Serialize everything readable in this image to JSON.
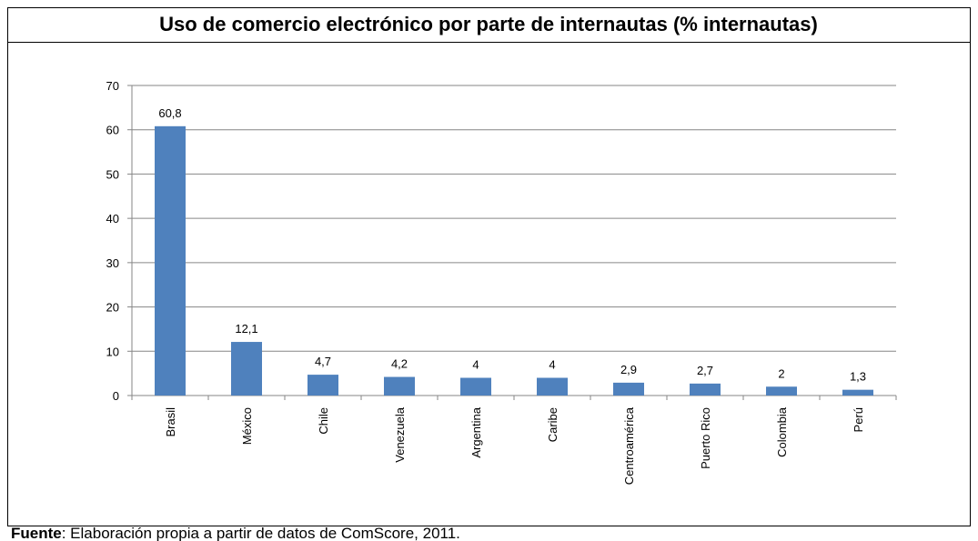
{
  "chart_data": {
    "type": "bar",
    "title": "Uso de comercio electrónico por parte de internautas (% internautas)",
    "categories": [
      "Brasil",
      "México",
      "Chile",
      "Venezuela",
      "Argentina",
      "Caribe",
      "Centroamérica",
      "Puerto Rico",
      "Colombia",
      "Perú"
    ],
    "values": [
      60.8,
      12.1,
      4.7,
      4.2,
      4,
      4,
      2.9,
      2.7,
      2,
      1.3
    ],
    "value_labels": [
      "60,8",
      "12,1",
      "4,7",
      "4,2",
      "4",
      "4",
      "2,9",
      "2,7",
      "2",
      "1,3"
    ],
    "color": "#4f81bd",
    "ylim": [
      0,
      70
    ],
    "yticks": [
      0,
      10,
      20,
      30,
      40,
      50,
      60,
      70
    ],
    "grid": true
  },
  "source": {
    "label": "Fuente",
    "text": ": Elaboración propia a partir de datos de ComScore, 2011."
  }
}
